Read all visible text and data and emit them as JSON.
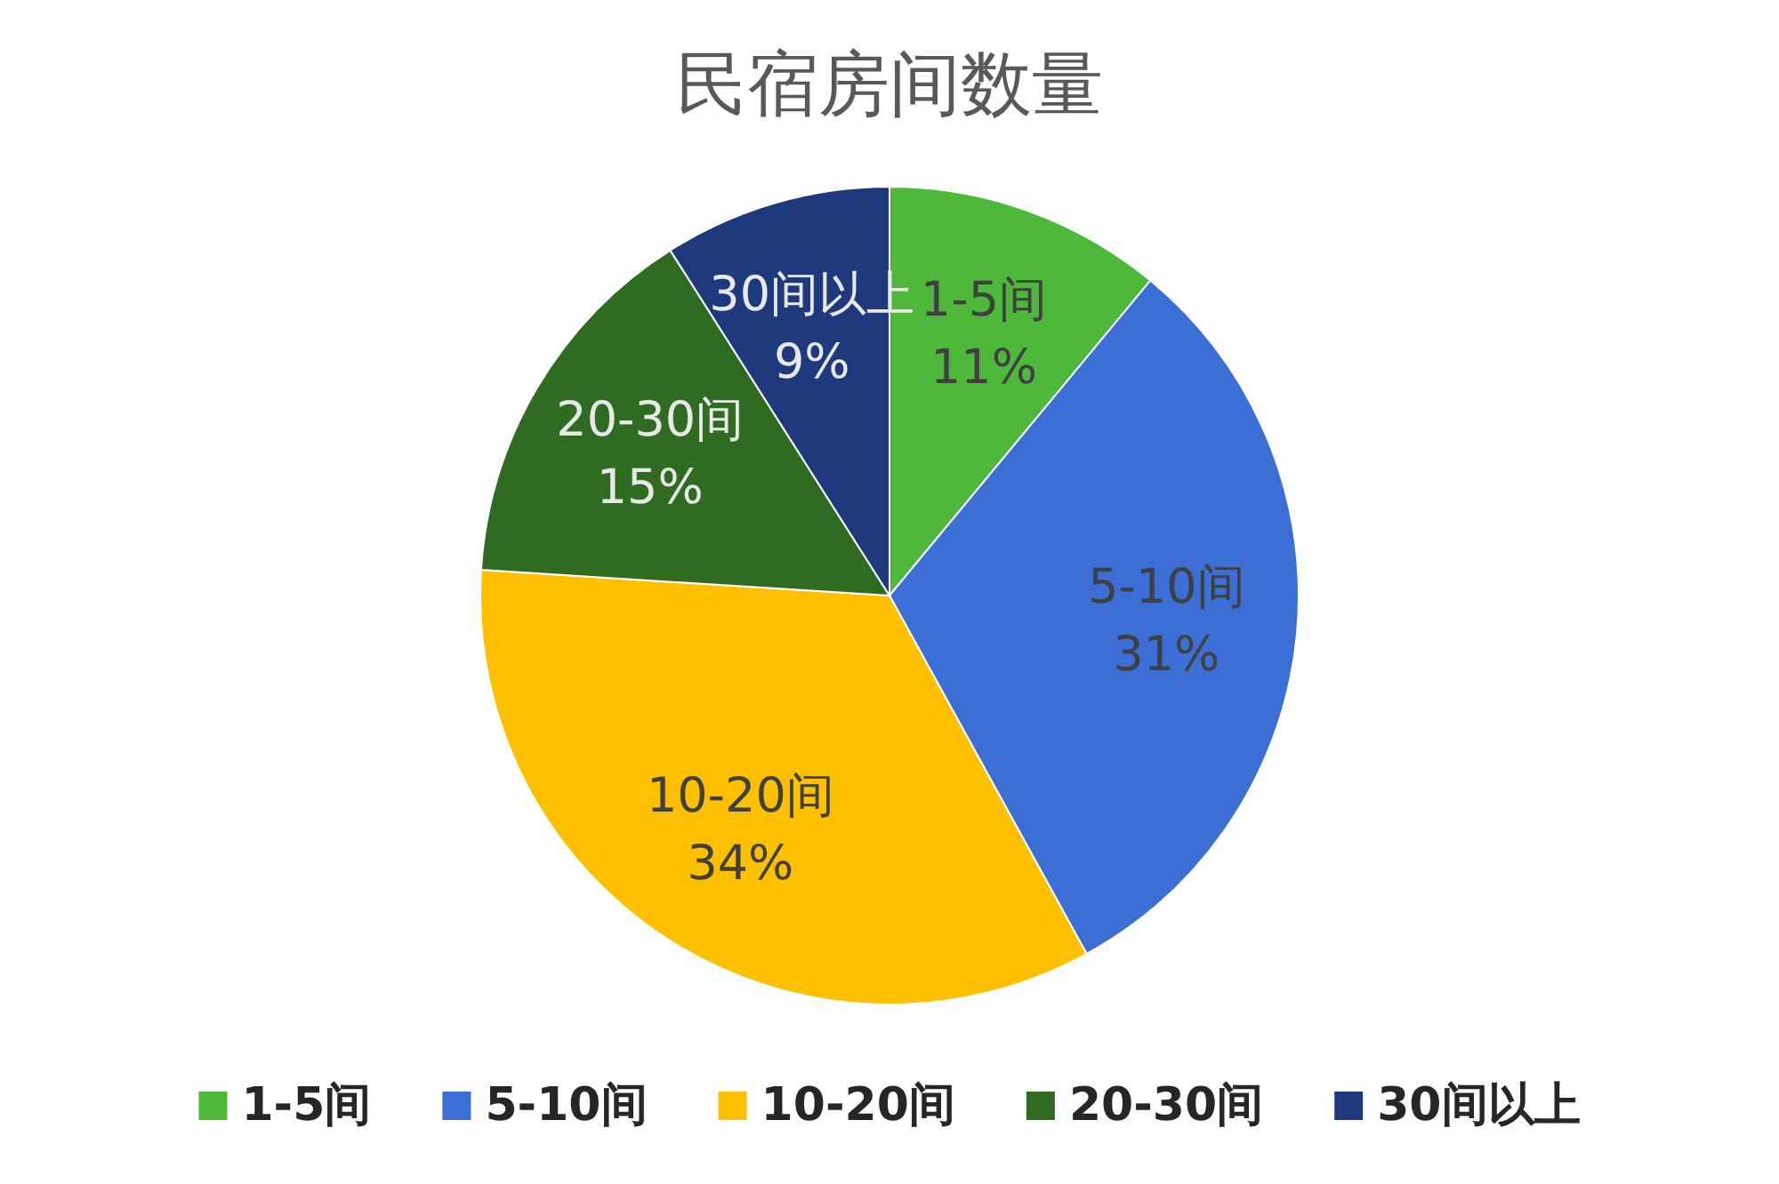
{
  "chart_data": {
    "type": "pie",
    "title": "民宿房间数量",
    "categories": [
      "1-5间",
      "5-10间",
      "10-20间",
      "20-30间",
      "30间以上"
    ],
    "values": [
      11,
      31,
      34,
      15,
      9
    ],
    "colors": [
      "#4db83a",
      "#3b6fd6",
      "#ffc000",
      "#2f6b20",
      "#1f3a7c"
    ],
    "value_labels": [
      "11%",
      "31%",
      "34%",
      "15%",
      "9%"
    ],
    "legend": "bottom"
  }
}
